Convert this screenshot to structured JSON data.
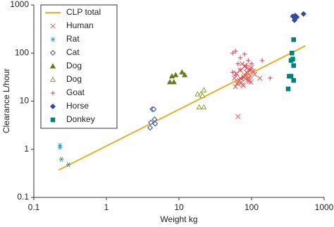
{
  "chart_data": {
    "type": "scatter",
    "xlabel": "Weight kg",
    "ylabel": "Clearance L/hour",
    "xscale": "log",
    "yscale": "log",
    "xlim": [
      0.1,
      1000
    ],
    "ylim": [
      0.1,
      1000
    ],
    "xticks": [
      0.1,
      1,
      10,
      100,
      1000
    ],
    "yticks": [
      0.1,
      1,
      10,
      100,
      1000
    ],
    "legend": "upper left",
    "series": [
      {
        "name": "CLP total",
        "color": "#e8b02a",
        "marker": "line",
        "x": [
          0.22,
          550
        ],
        "values": [
          0.37,
          141
        ]
      },
      {
        "name": "Human",
        "color": "#e05a5a",
        "marker": "x",
        "x": [
          65,
          70,
          75,
          80,
          85,
          90,
          95,
          100,
          60,
          72,
          78,
          88,
          92,
          68,
          82,
          58,
          105,
          110,
          74,
          86,
          96,
          64,
          77,
          83,
          91,
          70,
          80,
          62,
          98,
          65,
          130
        ],
        "values": [
          25,
          30,
          22,
          35,
          40,
          28,
          45,
          50,
          20,
          24,
          32,
          38,
          26,
          27,
          55,
          30,
          42,
          36,
          60,
          48,
          33,
          23,
          21,
          29,
          31,
          44,
          52,
          38,
          25,
          4.8,
          30
        ]
      },
      {
        "name": "Rat",
        "color": "#3a9ab0",
        "marker": "asterisk",
        "x": [
          0.23,
          0.23,
          0.24,
          0.3
        ],
        "values": [
          1.2,
          1.1,
          0.62,
          0.48
        ]
      },
      {
        "name": "Cat",
        "color": "#3050b0",
        "marker": "diamond-open",
        "x": [
          4.3,
          4.5,
          4.6,
          4.1,
          4.0,
          4.7
        ],
        "values": [
          6.8,
          6.8,
          4.2,
          3.6,
          2.8,
          3.4
        ]
      },
      {
        "name": "Dog",
        "color": "#6b7a1f",
        "marker": "triangle",
        "x": [
          7.5,
          8.5,
          9,
          8,
          11,
          12
        ],
        "values": [
          25,
          25,
          35,
          33,
          40,
          35
        ]
      },
      {
        "name": "Dog",
        "color": "#8fa03a",
        "marker": "triangle-open",
        "x": [
          18,
          20,
          22,
          19,
          22,
          21
        ],
        "values": [
          14,
          14,
          17,
          7.5,
          7.5,
          13
        ]
      },
      {
        "name": "Goat",
        "color": "#d04060",
        "marker": "plus",
        "x": [
          55,
          60,
          65,
          70,
          80,
          90,
          100,
          140,
          180,
          70,
          60,
          75,
          85,
          55,
          95
        ],
        "values": [
          100,
          110,
          60,
          80,
          95,
          70,
          60,
          70,
          30,
          45,
          35,
          30,
          55,
          40,
          45
        ]
      },
      {
        "name": "Horse",
        "color": "#334a9a",
        "marker": "diamond",
        "x": [
          370,
          400,
          420,
          390,
          520
        ],
        "values": [
          580,
          600,
          560,
          480,
          650
        ]
      },
      {
        "name": "Donkey",
        "color": "#00827a",
        "marker": "square",
        "x": [
          380,
          360,
          350,
          370,
          380,
          330,
          350,
          380,
          320
        ],
        "values": [
          190,
          100,
          70,
          75,
          55,
          33,
          33,
          27,
          18
        ]
      }
    ]
  }
}
